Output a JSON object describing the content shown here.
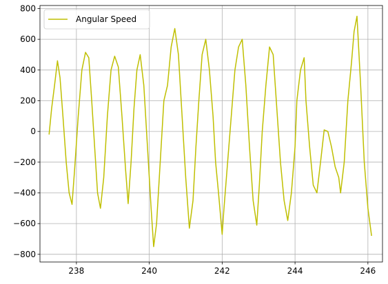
{
  "chart_data": {
    "type": "line",
    "title": "",
    "xlabel": "",
    "ylabel": "",
    "xlim": [
      237.0,
      246.4
    ],
    "ylim": [
      -850,
      820
    ],
    "xticks": [
      238,
      240,
      242,
      244,
      246
    ],
    "yticks": [
      -800,
      -600,
      -400,
      -200,
      0,
      200,
      400,
      600,
      800
    ],
    "grid": true,
    "legend_position": "upper-left",
    "series": [
      {
        "name": "Angular Speed",
        "color": "#bfbf00",
        "x": [
          237.25,
          237.32,
          237.4,
          237.48,
          237.55,
          237.63,
          237.72,
          237.8,
          237.88,
          237.95,
          238.05,
          238.15,
          238.25,
          238.34,
          238.42,
          238.5,
          238.58,
          238.66,
          238.75,
          238.85,
          238.95,
          239.05,
          239.15,
          239.25,
          239.35,
          239.42,
          239.5,
          239.58,
          239.66,
          239.75,
          239.85,
          239.95,
          240.05,
          240.12,
          240.2,
          240.3,
          240.4,
          240.5,
          240.6,
          240.7,
          240.8,
          240.9,
          241.0,
          241.1,
          241.2,
          241.28,
          241.36,
          241.45,
          241.55,
          241.65,
          241.75,
          241.82,
          241.9,
          242.0,
          242.05,
          242.15,
          242.25,
          242.35,
          242.45,
          242.55,
          242.65,
          242.75,
          242.85,
          242.95,
          243.02,
          243.1,
          243.2,
          243.3,
          243.4,
          243.5,
          243.6,
          243.7,
          243.8,
          243.9,
          244.0,
          244.05,
          244.15,
          244.25,
          244.3,
          244.4,
          244.5,
          244.6,
          244.7,
          244.8,
          244.9,
          245.0,
          245.1,
          245.2,
          245.25,
          245.35,
          245.45,
          245.55,
          245.62,
          245.7,
          245.8,
          245.9,
          246.0,
          246.1
        ],
        "values": [
          -20,
          150,
          300,
          460,
          350,
          100,
          -200,
          -400,
          -475,
          -250,
          100,
          400,
          515,
          480,
          200,
          -100,
          -400,
          -500,
          -300,
          100,
          400,
          490,
          420,
          100,
          -250,
          -470,
          -200,
          150,
          400,
          500,
          300,
          -100,
          -500,
          -750,
          -600,
          -200,
          200,
          300,
          550,
          670,
          500,
          100,
          -300,
          -630,
          -450,
          -100,
          200,
          500,
          600,
          400,
          100,
          -200,
          -400,
          -670,
          -500,
          -200,
          100,
          400,
          550,
          600,
          300,
          -100,
          -450,
          -610,
          -350,
          0,
          300,
          550,
          500,
          150,
          -200,
          -450,
          -580,
          -400,
          -100,
          200,
          400,
          480,
          200,
          -100,
          -350,
          -400,
          -200,
          10,
          0,
          -100,
          -230,
          -300,
          -400,
          -200,
          200,
          450,
          650,
          750,
          300,
          -200,
          -500,
          -680
        ]
      }
    ]
  }
}
